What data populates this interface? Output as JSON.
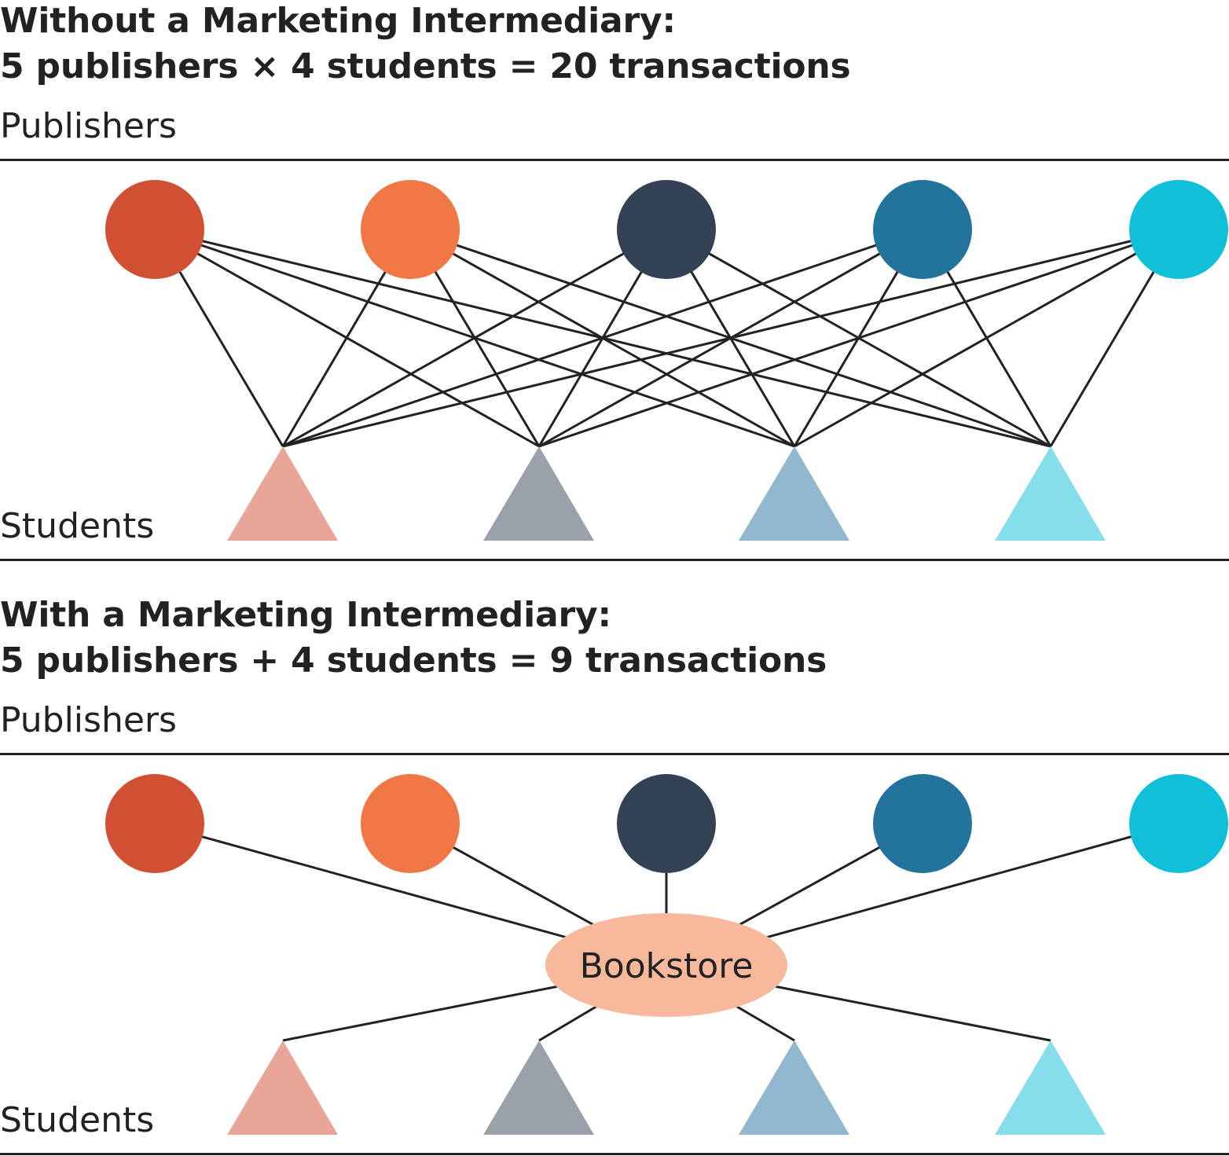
{
  "without": {
    "title_line1": "Without a Marketing Intermediary:",
    "title_line2": "5 publishers × 4 students = 20 transactions",
    "publishers_label": "Publishers",
    "students_label": "Students"
  },
  "with": {
    "title_line1": "With a Marketing Intermediary:",
    "title_line2": "5 publishers + 4 students = 9 transactions",
    "publishers_label": "Publishers",
    "students_label": "Students",
    "intermediary_label": "Bookstore"
  },
  "colors": {
    "publishers": [
      "#d14f33",
      "#f27746",
      "#334355",
      "#23749c",
      "#10c0db"
    ],
    "students": [
      "#e8a598",
      "#9aa1ab",
      "#91b8cf",
      "#86deeb"
    ],
    "bookstore": "#f8b89c",
    "line": "#222222"
  }
}
